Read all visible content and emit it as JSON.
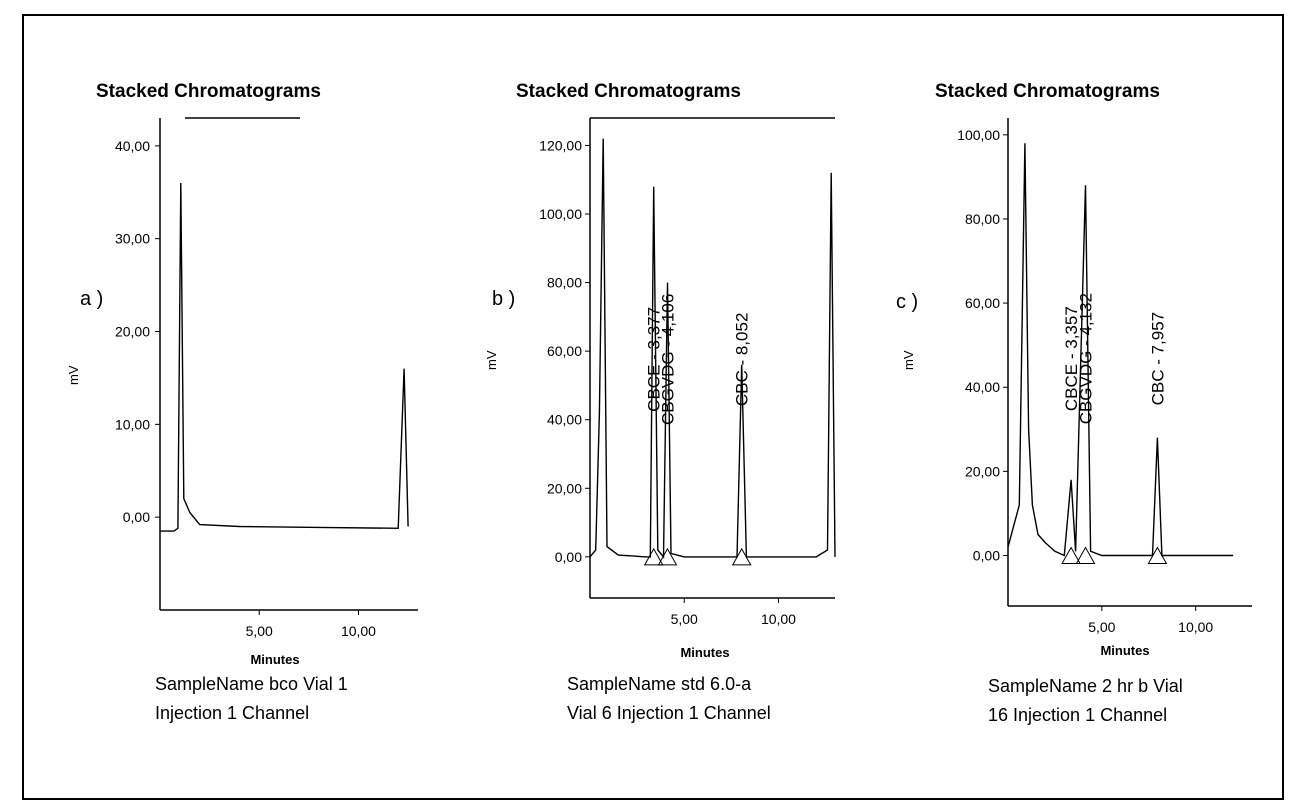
{
  "chart_data": [
    {
      "type": "line",
      "panel_label": "a )",
      "title": "Stacked Chromatograms",
      "xlabel": "Minutes",
      "ylabel": "mV",
      "x_ticks": [
        "5,00",
        "10,00"
      ],
      "y_ticks": [
        "0,00",
        "10,00",
        "20,00",
        "30,00",
        "40,00"
      ],
      "xlim": [
        0,
        13
      ],
      "ylim": [
        -10,
        43
      ],
      "caption": [
        "SampleName bco Vial 1",
        "Injection 1 Channel"
      ],
      "peaks": [],
      "series": [
        {
          "points": [
            [
              0,
              -1.5
            ],
            [
              0.7,
              -1.5
            ],
            [
              0.9,
              -1.2
            ],
            [
              1.05,
              36
            ],
            [
              1.2,
              2
            ],
            [
              1.5,
              0.5
            ],
            [
              2,
              -0.8
            ],
            [
              4,
              -1
            ],
            [
              8,
              -1.1
            ],
            [
              12,
              -1.2
            ],
            [
              12.3,
              16
            ],
            [
              12.5,
              -1
            ]
          ]
        }
      ]
    },
    {
      "type": "line",
      "panel_label": "b )",
      "title": "Stacked Chromatograms",
      "xlabel": "Minutes",
      "ylabel": "mV",
      "x_ticks": [
        "5,00",
        "10,00"
      ],
      "y_ticks": [
        "0,00",
        "20,00",
        "40,00",
        "60,00",
        "80,00",
        "100,00",
        "120,00"
      ],
      "xlim": [
        0,
        13
      ],
      "ylim": [
        -12,
        128
      ],
      "caption": [
        "SampleName std 6.0-a",
        "Vial 6 Injection 1 Channel"
      ],
      "peaks": [
        {
          "label": "CBCE - 3,377",
          "x": 3.38
        },
        {
          "label": "CBGVDG - 4,106",
          "x": 4.11
        },
        {
          "label": "CBC - 8,052",
          "x": 8.05
        }
      ],
      "series": [
        {
          "points": [
            [
              0,
              0
            ],
            [
              0.3,
              2
            ],
            [
              0.5,
              42
            ],
            [
              0.7,
              122
            ],
            [
              0.9,
              3
            ],
            [
              1.5,
              0.5
            ],
            [
              3,
              0
            ],
            [
              3.2,
              0
            ],
            [
              3.38,
              108
            ],
            [
              3.6,
              2
            ],
            [
              3.9,
              0
            ],
            [
              4.11,
              80
            ],
            [
              4.3,
              1
            ],
            [
              5,
              0
            ],
            [
              7.8,
              0
            ],
            [
              8.05,
              56
            ],
            [
              8.3,
              0
            ],
            [
              12,
              0
            ],
            [
              12.6,
              2
            ],
            [
              12.8,
              112
            ],
            [
              13,
              0
            ]
          ]
        }
      ]
    },
    {
      "type": "line",
      "panel_label": "c )",
      "title": "Stacked Chromatograms",
      "xlabel": "Minutes",
      "ylabel": "mV",
      "x_ticks": [
        "5,00",
        "10,00"
      ],
      "y_ticks": [
        "0,00",
        "20,00",
        "40,00",
        "60,00",
        "80,00",
        "100,00"
      ],
      "xlim": [
        0,
        13
      ],
      "ylim": [
        -12,
        104
      ],
      "caption": [
        "SampleName 2 hr b Vial",
        "16 Injection 1 Channel"
      ],
      "peaks": [
        {
          "label": "CBCE - 3,357",
          "x": 3.36
        },
        {
          "label": "CBGVDG - 4,132",
          "x": 4.13
        },
        {
          "label": "CBC - 7,957",
          "x": 7.96
        }
      ],
      "series": [
        {
          "points": [
            [
              0,
              2
            ],
            [
              0.6,
              12
            ],
            [
              0.9,
              98
            ],
            [
              1.1,
              30
            ],
            [
              1.3,
              12
            ],
            [
              1.6,
              5
            ],
            [
              2,
              3
            ],
            [
              2.5,
              1
            ],
            [
              3,
              0
            ],
            [
              3.36,
              18
            ],
            [
              3.6,
              1
            ],
            [
              4.13,
              88
            ],
            [
              4.4,
              1
            ],
            [
              5,
              0
            ],
            [
              7.7,
              0
            ],
            [
              7.96,
              28
            ],
            [
              8.2,
              0
            ],
            [
              12,
              0
            ]
          ]
        }
      ]
    }
  ]
}
